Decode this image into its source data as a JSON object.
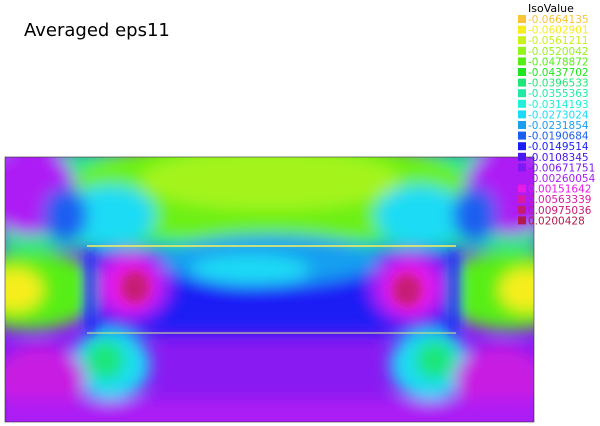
{
  "chart_data": {
    "type": "heatmap",
    "title": "Averaged eps11",
    "legend": {
      "title": "IsoValue",
      "placement": "top-right",
      "entries": [
        {
          "label": "-0.0664135",
          "color": "#f9c535"
        },
        {
          "label": "-0.0602901",
          "color": "#f7ee1c"
        },
        {
          "label": "-0.0561211",
          "color": "#c8f21a"
        },
        {
          "label": "-0.0520042",
          "color": "#95f41b"
        },
        {
          "label": "-0.0478872",
          "color": "#57ee18"
        },
        {
          "label": "-0.0437702",
          "color": "#1ee61e"
        },
        {
          "label": "-0.0396533",
          "color": "#1fe676"
        },
        {
          "label": "-0.0355363",
          "color": "#21e9a4"
        },
        {
          "label": "-0.0314193",
          "color": "#1ff0d6"
        },
        {
          "label": "-0.0273024",
          "color": "#1edbf5"
        },
        {
          "label": "-0.0231854",
          "color": "#199ff0"
        },
        {
          "label": "-0.0190684",
          "color": "#1a5ef0"
        },
        {
          "label": "-0.0149514",
          "color": "#1a1ef5"
        },
        {
          "label": "-0.0108345",
          "color": "#4a18f0"
        },
        {
          "label": "-0.00671751",
          "color": "#7d1af2"
        },
        {
          "label": "-0.00260054",
          "color": "#ad1af5"
        },
        {
          "label": "0.00151642",
          "color": "#e81ae6"
        },
        {
          "label": "0.00563339",
          "color": "#d81aa5"
        },
        {
          "label": "0.00975036",
          "color": "#c71a75"
        },
        {
          "label": "0.0200428",
          "color": "#b01a4e"
        }
      ]
    }
  }
}
